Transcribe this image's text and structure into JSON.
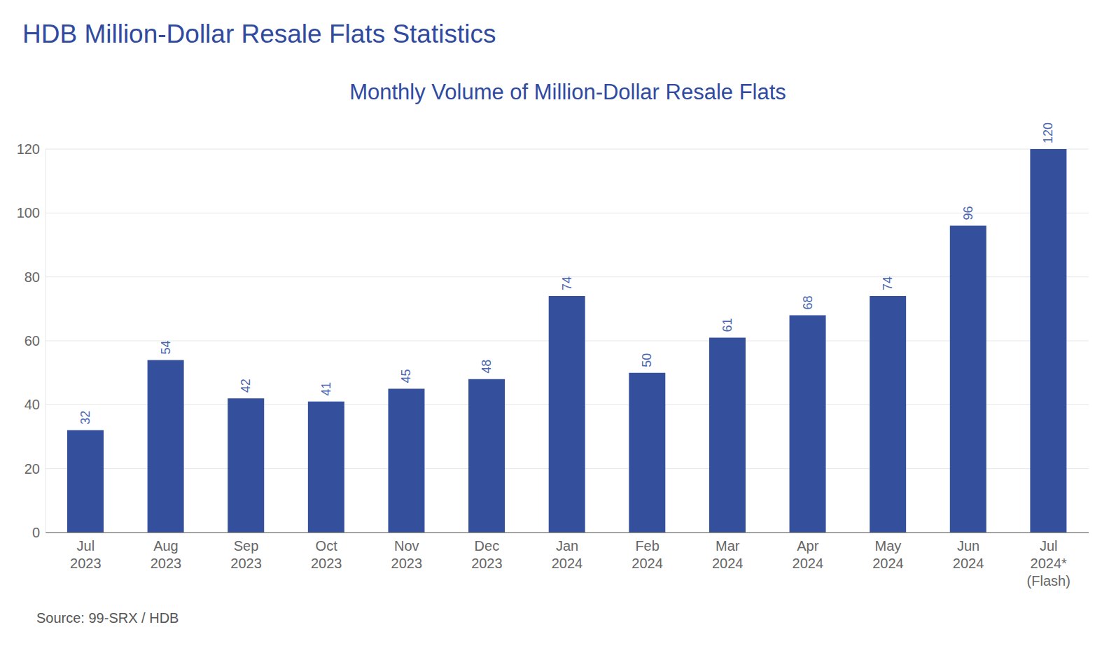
{
  "chart_data": {
    "type": "bar",
    "title": "HDB Million-Dollar Resale Flats Statistics",
    "subtitle": "Monthly Volume of Million-Dollar Resale Flats",
    "source": "Source: 99-SRX / HDB",
    "categories": [
      "Jul 2023",
      "Aug 2023",
      "Sep 2023",
      "Oct 2023",
      "Nov 2023",
      "Dec 2023",
      "Jan 2024",
      "Feb 2024",
      "Mar 2024",
      "Apr 2024",
      "May 2024",
      "Jun 2024",
      "Jul 2024* (Flash)"
    ],
    "values": [
      32,
      54,
      42,
      41,
      45,
      48,
      74,
      50,
      61,
      68,
      74,
      96,
      120
    ],
    "color": "#34509c",
    "ylim": [
      0,
      120
    ],
    "yticks": [
      0,
      20,
      40,
      60,
      80,
      100,
      120
    ],
    "grid": true,
    "data_labels": true
  }
}
